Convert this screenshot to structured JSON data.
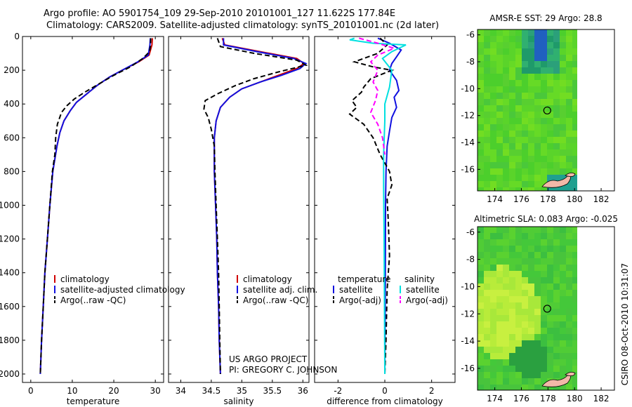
{
  "title_line1": "Argo profile: AO 5901754_109 29-Sep-2010 20101001_127 11.622S 177.84E",
  "title_line2": "Climatology: CARS2009. Satellite-adjusted climatology: synTS_20101001.nc (2d later)",
  "credit": {
    "project": "US ARGO PROJECT",
    "pi": "PI: GREGORY C. JOHNSON"
  },
  "stamp": "CSIRO 08-Oct-2010 10:31:07",
  "colors": {
    "climatology": "#d00000",
    "satellite": "#1010e0",
    "argo": "#000000",
    "sat_salinity": "#00e0e0",
    "argo_salinity": "#ff00ff"
  },
  "chart_data": [
    {
      "type": "line",
      "xlabel": "temperature",
      "ylim": [
        2050,
        0
      ],
      "xlim": [
        -2,
        32
      ],
      "xticks": [
        0,
        10,
        20,
        30
      ],
      "yticks": [
        0,
        200,
        400,
        600,
        800,
        1000,
        1200,
        1400,
        1600,
        1800,
        2000
      ],
      "legend": [
        "climatology",
        "satellite-adjusted climatology",
        "Argo(..raw -QC)"
      ],
      "series": [
        {
          "name": "climatology",
          "style": "solid",
          "color": "#d00000",
          "points": [
            [
              29.3,
              10
            ],
            [
              29.2,
              50
            ],
            [
              28.5,
              110
            ],
            [
              26,
              150
            ],
            [
              22,
              200
            ],
            [
              19,
              240
            ],
            [
              16,
              290
            ],
            [
              13.5,
              340
            ],
            [
              11,
              390
            ],
            [
              9.5,
              440
            ],
            [
              8,
              500
            ],
            [
              7,
              570
            ],
            [
              6.3,
              650
            ],
            [
              5.3,
              800
            ],
            [
              4.6,
              1000
            ],
            [
              4,
              1200
            ],
            [
              3.4,
              1400
            ],
            [
              3,
              1600
            ],
            [
              2.6,
              1800
            ],
            [
              2.3,
              2000
            ]
          ]
        },
        {
          "name": "satellite-adjusted climatology",
          "style": "solid",
          "color": "#1010e0",
          "points": [
            [
              28.8,
              10
            ],
            [
              28.7,
              50
            ],
            [
              28.3,
              110
            ],
            [
              25.8,
              150
            ],
            [
              22,
              200
            ],
            [
              19,
              240
            ],
            [
              16,
              290
            ],
            [
              13.5,
              340
            ],
            [
              11,
              390
            ],
            [
              9.5,
              440
            ],
            [
              8,
              500
            ],
            [
              7,
              570
            ],
            [
              6.3,
              650
            ],
            [
              5.3,
              800
            ],
            [
              4.6,
              1000
            ],
            [
              4,
              1200
            ],
            [
              3.4,
              1400
            ],
            [
              3,
              1600
            ],
            [
              2.6,
              1800
            ],
            [
              2.3,
              2000
            ]
          ]
        },
        {
          "name": "Argo(..raw -QC)",
          "style": "dashed",
          "color": "#000000",
          "points": [
            [
              28.9,
              10
            ],
            [
              28.8,
              60
            ],
            [
              28.6,
              90
            ],
            [
              27,
              130
            ],
            [
              24,
              180
            ],
            [
              20,
              230
            ],
            [
              16.5,
              280
            ],
            [
              13,
              330
            ],
            [
              10.5,
              370
            ],
            [
              8.7,
              410
            ],
            [
              7.4,
              450
            ],
            [
              6.4,
              520
            ],
            [
              6,
              600
            ],
            [
              5.8,
              700
            ],
            [
              5.2,
              800
            ],
            [
              4.6,
              1000
            ],
            [
              4,
              1200
            ],
            [
              3.4,
              1400
            ],
            [
              3,
              1600
            ],
            [
              2.6,
              1800
            ],
            [
              2.3,
              2000
            ]
          ]
        }
      ]
    },
    {
      "type": "line",
      "xlabel": "salinity",
      "ylim": [
        2050,
        0
      ],
      "xlim": [
        33.8,
        36.1
      ],
      "xticks": [
        34,
        34.5,
        35,
        35.5,
        36
      ],
      "legend": [
        "climatology",
        "satellite adj. clim.",
        "Argo(..raw -QC)"
      ],
      "series": [
        {
          "name": "climatology",
          "style": "solid",
          "color": "#d00000",
          "points": [
            [
              34.68,
              10
            ],
            [
              34.72,
              50
            ],
            [
              35.3,
              90
            ],
            [
              35.9,
              130
            ],
            [
              36.02,
              160
            ],
            [
              35.9,
              190
            ],
            [
              35.6,
              230
            ],
            [
              35.3,
              270
            ],
            [
              35,
              310
            ],
            [
              34.8,
              360
            ],
            [
              34.65,
              420
            ],
            [
              34.58,
              500
            ],
            [
              34.55,
              600
            ],
            [
              34.55,
              800
            ],
            [
              34.57,
              1000
            ],
            [
              34.59,
              1200
            ],
            [
              34.6,
              1400
            ],
            [
              34.62,
              1600
            ],
            [
              34.63,
              1800
            ],
            [
              34.65,
              2000
            ]
          ]
        },
        {
          "name": "satellite adj. clim.",
          "style": "solid",
          "color": "#1010e0",
          "points": [
            [
              34.7,
              10
            ],
            [
              34.7,
              50
            ],
            [
              35.25,
              90
            ],
            [
              35.85,
              130
            ],
            [
              36.05,
              160
            ],
            [
              35.95,
              190
            ],
            [
              35.65,
              230
            ],
            [
              35.3,
              270
            ],
            [
              35,
              310
            ],
            [
              34.8,
              360
            ],
            [
              34.65,
              420
            ],
            [
              34.58,
              500
            ],
            [
              34.55,
              600
            ],
            [
              34.55,
              800
            ],
            [
              34.57,
              1000
            ],
            [
              34.59,
              1200
            ],
            [
              34.6,
              1400
            ],
            [
              34.62,
              1600
            ],
            [
              34.63,
              1800
            ],
            [
              34.65,
              2000
            ]
          ]
        },
        {
          "name": "Argo(..raw -QC)",
          "style": "dashed",
          "color": "#000000",
          "points": [
            [
              34.6,
              10
            ],
            [
              34.65,
              60
            ],
            [
              35.2,
              100
            ],
            [
              35.9,
              140
            ],
            [
              36.05,
              170
            ],
            [
              35.6,
              210
            ],
            [
              35.2,
              250
            ],
            [
              34.9,
              290
            ],
            [
              34.6,
              340
            ],
            [
              34.4,
              380
            ],
            [
              34.38,
              430
            ],
            [
              34.45,
              480
            ],
            [
              34.5,
              550
            ],
            [
              34.55,
              650
            ],
            [
              34.56,
              800
            ],
            [
              34.58,
              1000
            ],
            [
              34.6,
              1200
            ],
            [
              34.62,
              1400
            ],
            [
              34.63,
              1600
            ],
            [
              34.64,
              1800
            ],
            [
              34.65,
              2000
            ]
          ]
        }
      ]
    },
    {
      "type": "line",
      "xlabel": "difference from climatology",
      "ylim": [
        2050,
        0
      ],
      "xlim": [
        -3,
        3
      ],
      "xticks": [
        -2,
        0,
        2
      ],
      "legend_groups": [
        {
          "heading": "temperature",
          "entries": [
            "satellite",
            "Argo(-adj)"
          ]
        },
        {
          "heading": "salinity",
          "entries": [
            "satellite",
            "Argo(-adj)"
          ]
        }
      ],
      "series": [
        {
          "name": "temperature satellite",
          "style": "solid",
          "color": "#1010e0",
          "points": [
            [
              -0.3,
              10
            ],
            [
              0.2,
              40
            ],
            [
              0.7,
              80
            ],
            [
              0.5,
              120
            ],
            [
              0.3,
              160
            ],
            [
              0.2,
              200
            ],
            [
              0.5,
              260
            ],
            [
              0.6,
              320
            ],
            [
              0.4,
              360
            ],
            [
              0.5,
              420
            ],
            [
              0.3,
              480
            ],
            [
              0.2,
              560
            ],
            [
              0.1,
              650
            ],
            [
              0.05,
              800
            ],
            [
              0.03,
              1000
            ],
            [
              0.02,
              1500
            ],
            [
              0,
              2000
            ]
          ]
        },
        {
          "name": "temperature Argo(-adj)",
          "style": "dashed",
          "color": "#000000",
          "points": [
            [
              -0.2,
              10
            ],
            [
              0.1,
              50
            ],
            [
              -0.3,
              100
            ],
            [
              -1.3,
              150
            ],
            [
              -0.5,
              180
            ],
            [
              0.3,
              200
            ],
            [
              -0.6,
              250
            ],
            [
              -0.9,
              300
            ],
            [
              -1,
              330
            ],
            [
              -1.4,
              380
            ],
            [
              -1.2,
              420
            ],
            [
              -1.5,
              460
            ],
            [
              -0.9,
              520
            ],
            [
              -0.5,
              600
            ],
            [
              -0.2,
              700
            ],
            [
              0.2,
              800
            ],
            [
              0.3,
              880
            ],
            [
              0.1,
              960
            ],
            [
              0.15,
              1100
            ],
            [
              0.2,
              1300
            ],
            [
              0.1,
              1500
            ],
            [
              0.05,
              1800
            ],
            [
              0,
              2000
            ]
          ]
        },
        {
          "name": "salinity satellite",
          "style": "solid",
          "color": "#00e0e0",
          "points": [
            [
              -1.3,
              10
            ],
            [
              -1.5,
              20
            ],
            [
              -0.5,
              40
            ],
            [
              0.9,
              50
            ],
            [
              0.3,
              90
            ],
            [
              -0.1,
              130
            ],
            [
              0.3,
              200
            ],
            [
              0.2,
              300
            ],
            [
              0,
              400
            ],
            [
              0,
              500
            ],
            [
              -0.05,
              700
            ],
            [
              -0.05,
              900
            ],
            [
              -0.03,
              1200
            ],
            [
              0,
              2000
            ]
          ]
        },
        {
          "name": "salinity Argo(-adj)",
          "style": "dashed",
          "color": "#ff00ff",
          "points": [
            [
              -1.1,
              10
            ],
            [
              -0.3,
              40
            ],
            [
              0.4,
              70
            ],
            [
              -0.3,
              110
            ],
            [
              -0.6,
              150
            ],
            [
              -0.3,
              200
            ],
            [
              -0.5,
              270
            ],
            [
              -0.3,
              320
            ],
            [
              -0.4,
              380
            ],
            [
              -0.6,
              450
            ],
            [
              -0.3,
              520
            ],
            [
              -0.1,
              600
            ],
            [
              0,
              700
            ]
          ]
        }
      ]
    },
    {
      "type": "heatmap",
      "title": "AMSR-E SST: 29 Argo: 28.8",
      "xticks": [
        174,
        176,
        178,
        180,
        182
      ],
      "yticks": [
        -6,
        -8,
        -10,
        -12,
        -14,
        -16
      ],
      "xlim": [
        172.7,
        183
      ],
      "ylim": [
        -17.6,
        -5.6
      ],
      "marker": {
        "lon": 177.84,
        "lat": -11.622
      }
    },
    {
      "type": "heatmap",
      "title": "Altimetric SLA: 0.083 Argo: -0.025",
      "xticks": [
        174,
        176,
        178,
        180,
        182
      ],
      "yticks": [
        -6,
        -8,
        -10,
        -12,
        -14,
        -16
      ],
      "xlim": [
        172.7,
        183
      ],
      "ylim": [
        -17.6,
        -5.6
      ],
      "marker": {
        "lon": 177.84,
        "lat": -11.622
      }
    }
  ]
}
